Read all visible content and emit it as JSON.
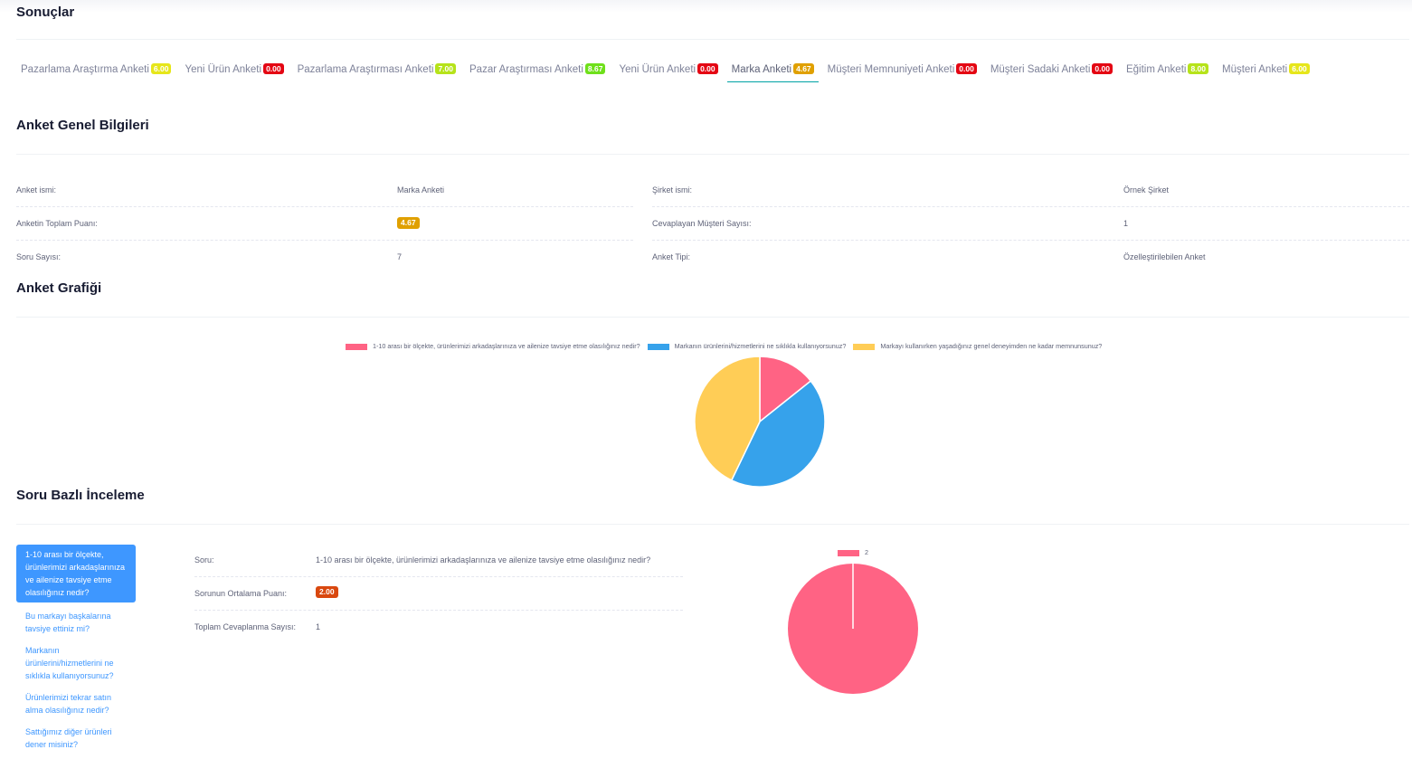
{
  "page_title": "Sonuçlar",
  "tabs": [
    {
      "label": "Pazarlama Araştırma Anketi",
      "score": "6.00",
      "color": "yellow",
      "active": false
    },
    {
      "label": "Yeni Ürün Anketi",
      "score": "0.00",
      "color": "red",
      "active": false
    },
    {
      "label": "Pazarlama Araştırması Anketi",
      "score": "7.00",
      "color": "lime",
      "active": false
    },
    {
      "label": "Pazar Araştırması Anketi",
      "score": "8.67",
      "color": "green",
      "active": false
    },
    {
      "label": "Yeni Ürün Anketi",
      "score": "0.00",
      "color": "red",
      "active": false
    },
    {
      "label": "Marka Anketi",
      "score": "4.67",
      "color": "amber",
      "active": true
    },
    {
      "label": "Müşteri Memnuniyeti Anketi",
      "score": "0.00",
      "color": "red",
      "active": false
    },
    {
      "label": "Müşteri Sadaki Anketi",
      "score": "0.00",
      "color": "red",
      "active": false
    },
    {
      "label": "Eğitim Anketi",
      "score": "8.00",
      "color": "lime",
      "active": false
    },
    {
      "label": "Müşteri Anketi",
      "score": "6.00",
      "color": "yellow",
      "active": false
    }
  ],
  "general": {
    "title": "Anket Genel Bilgileri",
    "name_label": "Anket ismi:",
    "name_value": "Marka Anketi",
    "company_label": "Şirket ismi:",
    "company_value": "Örnek Şirket",
    "total_label": "Anketin Toplam Puanı:",
    "total_value": "4.67",
    "respondents_label": "Cevaplayan Müşteri Sayısı:",
    "respondents_value": "1",
    "questions_label": "Soru Sayısı:",
    "questions_value": "7",
    "type_label": "Anket Tipi:",
    "type_value": "Özelleştirilebilen Anket"
  },
  "chart_section_title": "Anket Grafiği",
  "chart_data": [
    {
      "type": "pie",
      "series": [
        {
          "name": "1-10 arası bir ölçekte, ürünlerimizi arkadaşlarınıza ve ailenize tavsiye etme olasılığınız nedir?",
          "value": 2,
          "color": "#ff6384"
        },
        {
          "name": "Markanın ürünlerini/hizmetlerini ne sıklıkla kullanıyorsunuz?",
          "value": 6,
          "color": "#36a2eb"
        },
        {
          "name": "Markayı kullanırken yaşadığınız genel deneyimden ne kadar memnunsunuz?",
          "value": 6,
          "color": "#ffcd56"
        }
      ],
      "legend": "top"
    },
    {
      "type": "pie",
      "series": [
        {
          "name": "2",
          "value": 1,
          "color": "#ff6384"
        }
      ],
      "legend": "top"
    }
  ],
  "question_section": {
    "title": "Soru Bazlı İnceleme",
    "nav": [
      {
        "label": "1-10 arası bir ölçekte, ürünlerimizi arkadaşlarınıza ve ailenize tavsiye etme olasılığınız nedir?",
        "active": true
      },
      {
        "label": "Bu markayı başkalarına tavsiye ettiniz mi?",
        "active": false
      },
      {
        "label": "Markanın ürünlerini/hizmetlerini ne sıklıkla kullanıyorsunuz?",
        "active": false
      },
      {
        "label": "Ürünlerimizi tekrar satın alma olasılığınız nedir?",
        "active": false
      },
      {
        "label": "Sattığımız diğer ürünleri dener misiniz?",
        "active": false
      }
    ],
    "question_label": "Soru:",
    "question_value": "1-10 arası bir ölçekte, ürünlerimizi arkadaşlarınıza ve ailenize tavsiye etme olasılığınız nedir?",
    "avg_label": "Sorunun Ortalama Puanı:",
    "avg_value": "2.00",
    "avg_color": "#d9480f",
    "count_label": "Toplam Cevaplanma Sayısı:",
    "count_value": "1"
  },
  "colors": {
    "yellow": "#e6e61a",
    "red": "#e40613",
    "lime": "#b6e31a",
    "green": "#6fe01a",
    "amber": "#e0a000",
    "accent": "#3e97ff",
    "tab_underline": "#00a3a5"
  }
}
